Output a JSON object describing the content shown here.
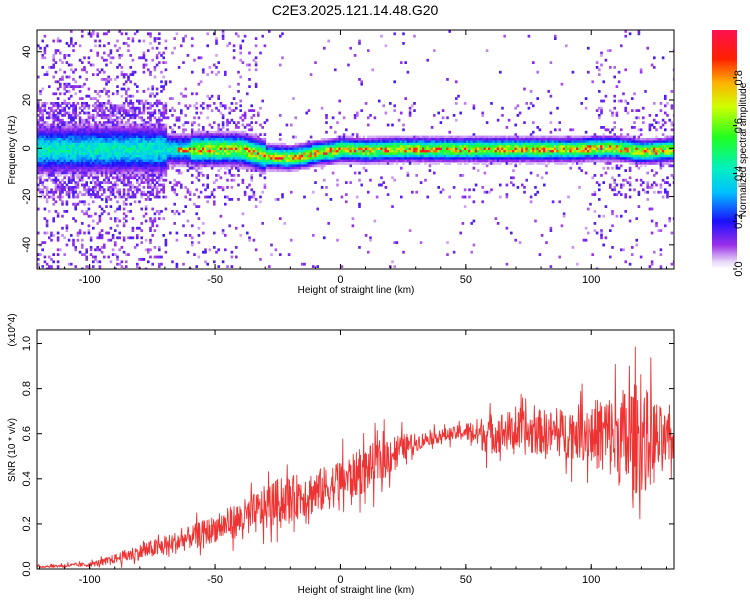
{
  "page": {
    "title": "C2E3.2025.121.14.48.G20"
  },
  "chart_data": [
    {
      "type": "heatmap",
      "title": "C2E3.2025.121.14.48.G20",
      "xlabel": "Height of straight line (km)",
      "ylabel": "Frequency (Hz)",
      "xlim": [
        -121,
        133
      ],
      "ylim": [
        -50,
        49
      ],
      "x_ticks": [
        -100,
        -50,
        0,
        50,
        100
      ],
      "y_ticks": [
        -40,
        -20,
        0,
        20,
        40
      ],
      "colorbar": {
        "label": "Normalized spectral amplitude",
        "range": [
          0,
          1
        ],
        "ticks": [
          "0.0",
          "0.2",
          "0.4",
          "0.6",
          "0.8"
        ]
      },
      "ridge_frequency": [
        [
          -121,
          0
        ],
        [
          -100,
          0
        ],
        [
          -90,
          0
        ],
        [
          -80,
          0
        ],
        [
          -70,
          0
        ],
        [
          -60,
          0
        ],
        [
          -50,
          0
        ],
        [
          -40,
          0
        ],
        [
          -33,
          -2
        ],
        [
          -30,
          -3
        ],
        [
          -20,
          -3.5
        ],
        [
          -14,
          -2.5
        ],
        [
          -10,
          -1.5
        ],
        [
          -5,
          -1
        ],
        [
          0,
          0
        ],
        [
          10,
          -0.5
        ],
        [
          20,
          0
        ],
        [
          40,
          0
        ],
        [
          60,
          0
        ],
        [
          80,
          0
        ],
        [
          95,
          0
        ],
        [
          100,
          0.5
        ],
        [
          110,
          0.5
        ],
        [
          120,
          -1
        ],
        [
          133,
          0
        ]
      ]
    },
    {
      "type": "line",
      "xlabel": "Height of straight line (km)",
      "ylabel": "SNR (10 * v/v)",
      "y_multiplier": "(x10^4)",
      "xlim": [
        -121,
        133
      ],
      "ylim": [
        0,
        1.06
      ],
      "x_ticks": [
        -100,
        -50,
        0,
        50,
        100
      ],
      "y_ticks": [
        "0.0",
        "0.2",
        "0.4",
        "0.6",
        "0.8",
        "1.0"
      ],
      "series": [
        {
          "color": "#ee3333",
          "x": [
            -121,
            -110,
            -100,
            -95,
            -90,
            -85,
            -80,
            -75,
            -70,
            -65,
            -60,
            -55,
            -50,
            -45,
            -40,
            -35,
            -30,
            -25,
            -20,
            -15,
            -10,
            -5,
            0,
            5,
            10,
            15,
            20,
            25,
            30,
            35,
            40,
            45,
            50,
            55,
            60,
            65,
            70,
            75,
            80,
            85,
            90,
            95,
            100,
            105,
            110,
            115,
            120,
            125,
            130,
            133
          ],
          "y": [
            0.01,
            0.015,
            0.02,
            0.03,
            0.045,
            0.06,
            0.075,
            0.09,
            0.1,
            0.12,
            0.14,
            0.16,
            0.18,
            0.2,
            0.22,
            0.24,
            0.27,
            0.3,
            0.31,
            0.33,
            0.34,
            0.36,
            0.39,
            0.41,
            0.44,
            0.47,
            0.51,
            0.54,
            0.56,
            0.58,
            0.59,
            0.6,
            0.61,
            0.6,
            0.6,
            0.61,
            0.61,
            0.6,
            0.61,
            0.6,
            0.6,
            0.61,
            0.6,
            0.6,
            0.58,
            0.57,
            0.58,
            0.57,
            0.56,
            0.56
          ],
          "noise_amplitude": [
            0.005,
            0.008,
            0.01,
            0.015,
            0.02,
            0.03,
            0.035,
            0.04,
            0.045,
            0.05,
            0.05,
            0.055,
            0.06,
            0.07,
            0.08,
            0.09,
            0.1,
            0.1,
            0.1,
            0.1,
            0.1,
            0.1,
            0.1,
            0.1,
            0.1,
            0.1,
            0.09,
            0.06,
            0.04,
            0.03,
            0.03,
            0.03,
            0.04,
            0.07,
            0.09,
            0.09,
            0.09,
            0.1,
            0.1,
            0.1,
            0.11,
            0.12,
            0.14,
            0.18,
            0.2,
            0.26,
            0.24,
            0.2,
            0.12,
            0.08
          ]
        }
      ]
    }
  ]
}
